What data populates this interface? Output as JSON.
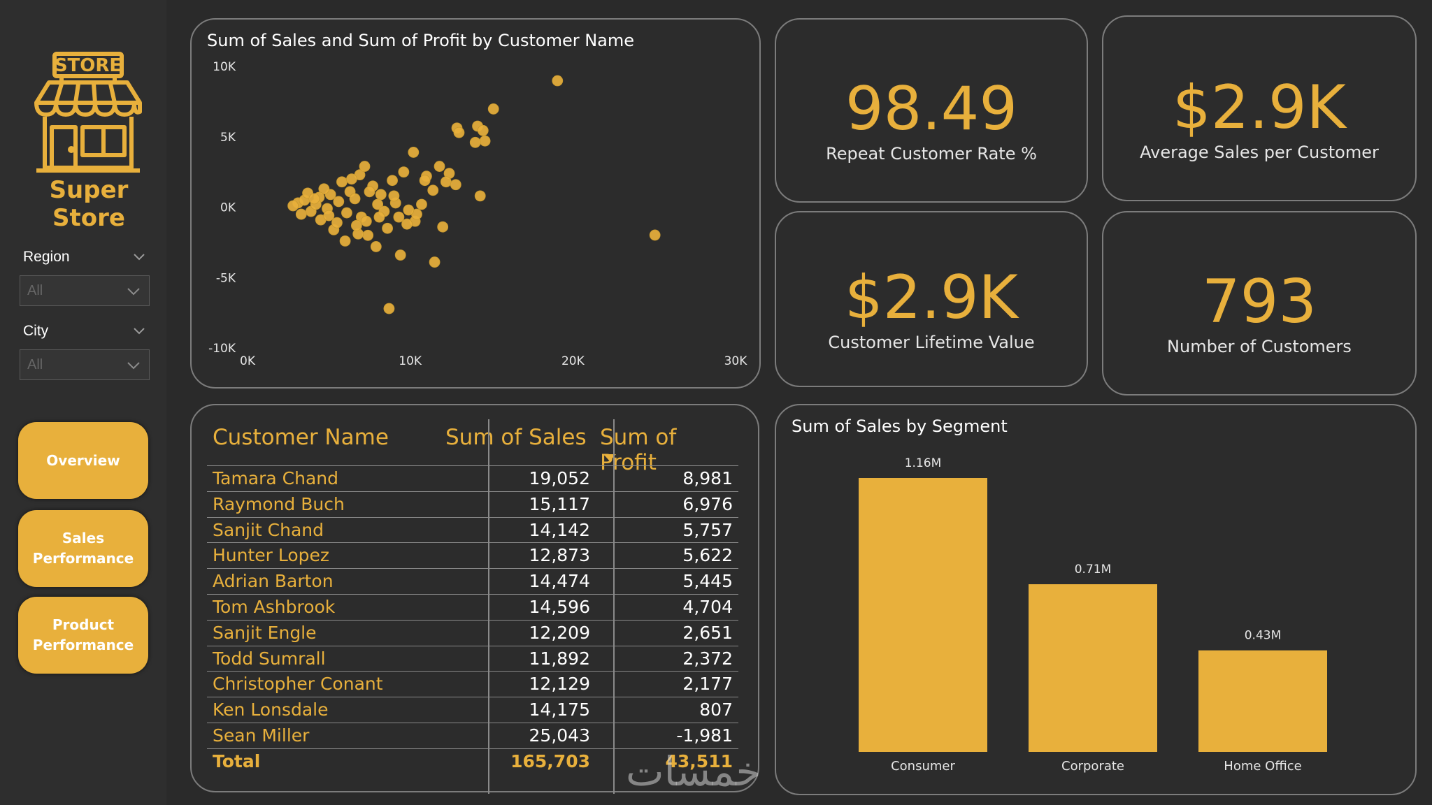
{
  "brand": {
    "sign_text": "STORE",
    "name": "Super Store",
    "color": "#e8b03c"
  },
  "filters": [
    {
      "label": "Region",
      "value": "All"
    },
    {
      "label": "City",
      "value": "All"
    }
  ],
  "nav": [
    {
      "label_lines": [
        "Overview"
      ]
    },
    {
      "label_lines": [
        "Sales",
        "Performance"
      ]
    },
    {
      "label_lines": [
        "Product",
        "Performance"
      ]
    }
  ],
  "kpis": [
    {
      "value": "98.49",
      "label": "Repeat Customer Rate %"
    },
    {
      "value": "$2.9K",
      "label": "Average Sales per Customer"
    },
    {
      "value": "$2.9K",
      "label": "Customer Lifetime Value"
    },
    {
      "value": "793",
      "label": "Number of Customers"
    }
  ],
  "table": {
    "headers": [
      "Customer Name",
      "Sum of Sales",
      "Sum of Profit"
    ],
    "sort_icon": "sort-desc-icon",
    "rows": [
      [
        "Tamara Chand",
        "19,052",
        "8,981"
      ],
      [
        "Raymond Buch",
        "15,117",
        "6,976"
      ],
      [
        "Sanjit Chand",
        "14,142",
        "5,757"
      ],
      [
        "Hunter Lopez",
        "12,873",
        "5,622"
      ],
      [
        "Adrian Barton",
        "14,474",
        "5,445"
      ],
      [
        "Tom Ashbrook",
        "14,596",
        "4,704"
      ],
      [
        "Sanjit Engle",
        "12,209",
        "2,651"
      ],
      [
        "Todd Sumrall",
        "11,892",
        "2,372"
      ],
      [
        "Christopher Conant",
        "12,129",
        "2,177"
      ],
      [
        "Ken Lonsdale",
        "14,175",
        "807"
      ],
      [
        "Sean Miller",
        "25,043",
        "-1,981"
      ]
    ],
    "total": [
      "Total",
      "165,703",
      "43,511"
    ]
  },
  "watermark": "خمسات",
  "chart_data": [
    {
      "type": "scatter",
      "title": "Sum of Sales and Sum of Profit by Customer Name",
      "xlabel": "",
      "ylabel": "",
      "xlim": [
        0,
        30000
      ],
      "ylim": [
        -10000,
        10000
      ],
      "x_ticks": [
        "0K",
        "10K",
        "20K",
        "30K"
      ],
      "y_ticks": [
        "10K",
        "5K",
        "0K",
        "-5K",
        "-10K"
      ],
      "color": "#e8b03c",
      "points": [
        [
          19052,
          8981
        ],
        [
          15117,
          6976
        ],
        [
          14142,
          5757
        ],
        [
          12873,
          5622
        ],
        [
          14474,
          5445
        ],
        [
          14596,
          4704
        ],
        [
          13000,
          5300
        ],
        [
          14000,
          4600
        ],
        [
          25043,
          -1981
        ],
        [
          8700,
          -7200
        ],
        [
          11500,
          -3900
        ],
        [
          12000,
          -1400
        ],
        [
          14300,
          800
        ],
        [
          9400,
          -3400
        ],
        [
          7900,
          -2800
        ],
        [
          7400,
          -2000
        ],
        [
          10200,
          3900
        ],
        [
          11800,
          2900
        ],
        [
          12400,
          2400
        ],
        [
          11000,
          2200
        ],
        [
          12200,
          1800
        ],
        [
          11400,
          1200
        ],
        [
          10700,
          200
        ],
        [
          10300,
          -1000
        ],
        [
          9800,
          -1200
        ],
        [
          9300,
          -700
        ],
        [
          8600,
          -1500
        ],
        [
          6800,
          -1900
        ],
        [
          6000,
          -2400
        ],
        [
          5300,
          -1600
        ],
        [
          10400,
          -500
        ],
        [
          9100,
          300
        ],
        [
          8200,
          900
        ],
        [
          7700,
          1500
        ],
        [
          6900,
          2300
        ],
        [
          7200,
          2900
        ],
        [
          5100,
          900
        ],
        [
          4700,
          1300
        ],
        [
          4400,
          700
        ],
        [
          6300,
          1100
        ],
        [
          8900,
          1900
        ],
        [
          9600,
          2500
        ],
        [
          10900,
          1900
        ],
        [
          12800,
          1600
        ],
        [
          3100,
          300
        ],
        [
          3500,
          500
        ],
        [
          3900,
          -300
        ],
        [
          4200,
          200
        ],
        [
          4900,
          -100
        ],
        [
          5600,
          400
        ],
        [
          6100,
          -400
        ],
        [
          6600,
          600
        ],
        [
          7000,
          -700
        ],
        [
          7500,
          1100
        ],
        [
          8000,
          200
        ],
        [
          8400,
          -300
        ],
        [
          9000,
          800
        ],
        [
          9900,
          -200
        ],
        [
          5800,
          1800
        ],
        [
          6400,
          2000
        ],
        [
          2800,
          100
        ],
        [
          3300,
          -500
        ],
        [
          4500,
          -900
        ],
        [
          5000,
          -600
        ],
        [
          5500,
          -1100
        ],
        [
          6700,
          -1300
        ],
        [
          7300,
          -1000
        ],
        [
          8100,
          -700
        ],
        [
          3700,
          1000
        ],
        [
          4100,
          600
        ]
      ]
    },
    {
      "type": "bar",
      "title": "Sum of Sales by Segment",
      "categories": [
        "Consumer",
        "Corporate",
        "Home Office"
      ],
      "values": [
        1.16,
        0.71,
        0.43
      ],
      "data_labels": [
        "1.16M",
        "0.71M",
        "0.43M"
      ],
      "ylim": [
        0,
        1.16
      ],
      "color": "#e8b03c"
    }
  ]
}
